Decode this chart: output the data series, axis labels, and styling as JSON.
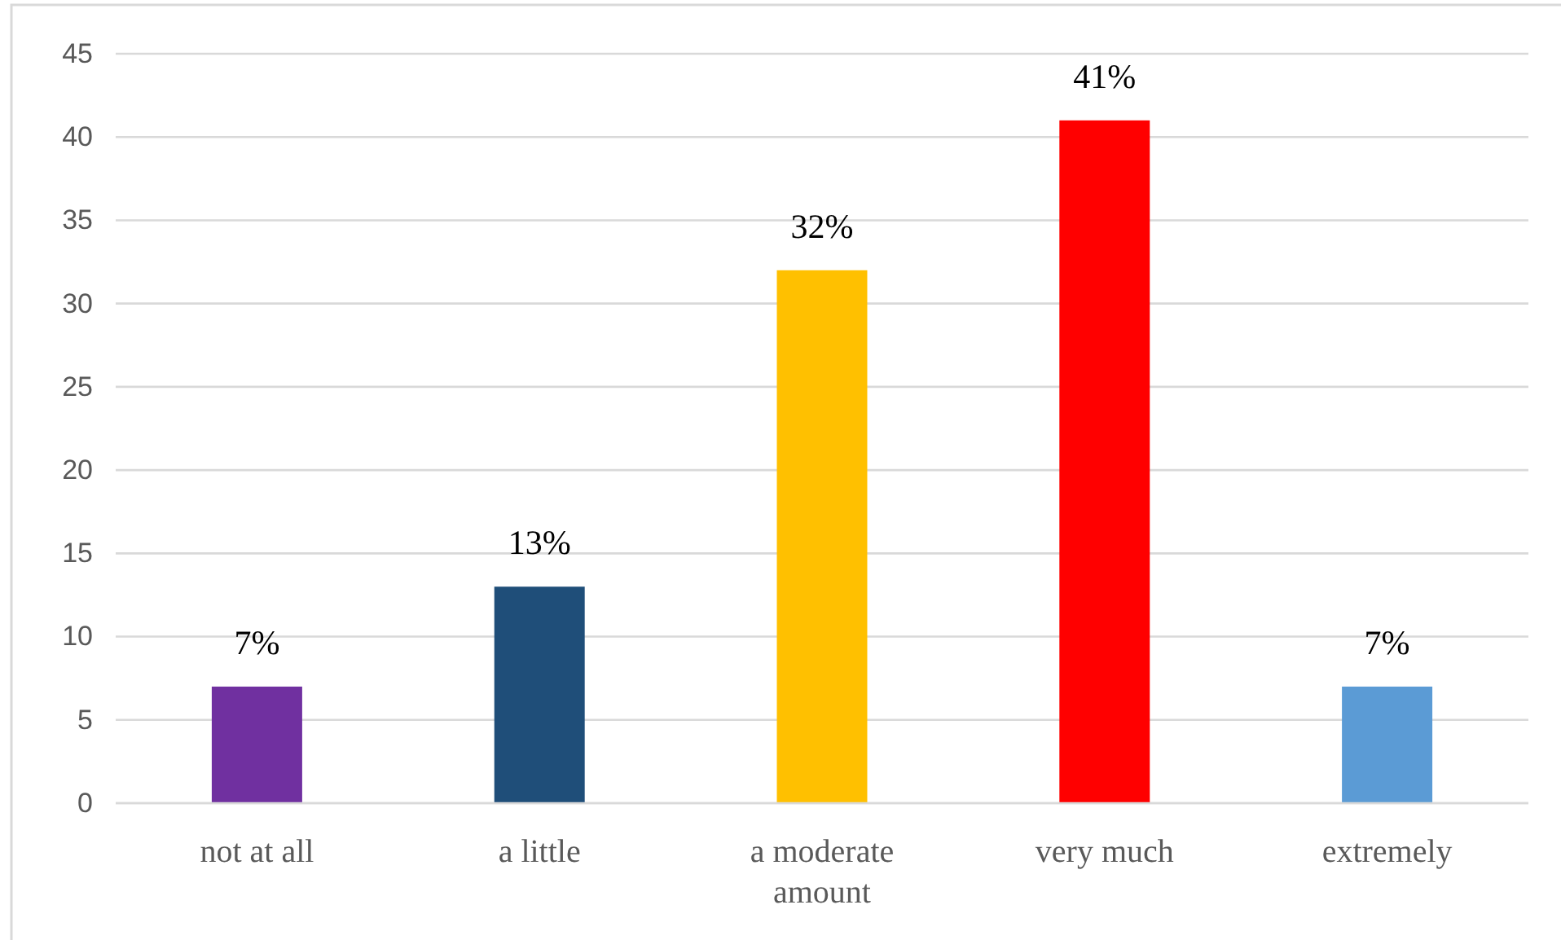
{
  "chart_data": {
    "type": "bar",
    "categories": [
      "not at all",
      "a little",
      "a moderate amount",
      "very much",
      "extremely"
    ],
    "values": [
      7,
      13,
      32,
      41,
      7
    ],
    "colors": [
      "#7030a0",
      "#1f4e79",
      "#ffc000",
      "#ff0000",
      "#5b9bd5"
    ],
    "value_labels": [
      "7%",
      "13%",
      "32%",
      "41%",
      "7%"
    ],
    "ylim": [
      0,
      45
    ],
    "yticks": [
      0,
      5,
      10,
      15,
      20,
      25,
      30,
      35,
      40,
      45
    ],
    "grid": "y"
  }
}
